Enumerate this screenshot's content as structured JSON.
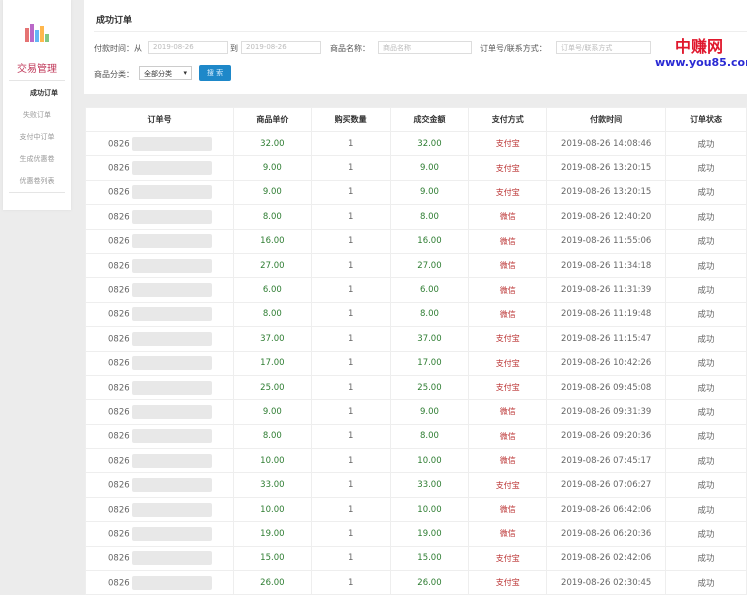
{
  "sidebar": {
    "brand": "交易管理",
    "items": [
      {
        "label": "成功订单",
        "active": true
      },
      {
        "label": "失败订单"
      },
      {
        "label": "支付中订单"
      },
      {
        "label": "生成优惠卷"
      },
      {
        "label": "优惠卷列表"
      }
    ]
  },
  "header": {
    "title": "成功订单"
  },
  "filters": {
    "pay_time_label": "付款时间：从",
    "from_placeholder": "2019-08-26",
    "to_label": "到",
    "to_placeholder": "2019-08-26",
    "product_label": "商品名称：",
    "product_placeholder": "商品名称",
    "order_label": "订单号/联系方式：",
    "order_placeholder": "订单号/联系方式",
    "category_label": "商品分类：",
    "category_value": "全部分类",
    "search_label": "搜 索"
  },
  "table": {
    "headers": [
      "订单号",
      "商品单价",
      "购买数量",
      "成交金额",
      "支付方式",
      "付款时间",
      "订单状态"
    ],
    "rows": [
      [
        "0826",
        "32.00",
        "1",
        "32.00",
        "支付宝",
        "2019-08-26 14:08:46",
        "成功"
      ],
      [
        "0826",
        "9.00",
        "1",
        "9.00",
        "支付宝",
        "2019-08-26 13:20:15",
        "成功"
      ],
      [
        "0826",
        "9.00",
        "1",
        "9.00",
        "支付宝",
        "2019-08-26 13:20:15",
        "成功"
      ],
      [
        "0826",
        "8.00",
        "1",
        "8.00",
        "微信",
        "2019-08-26 12:40:20",
        "成功"
      ],
      [
        "0826",
        "16.00",
        "1",
        "16.00",
        "微信",
        "2019-08-26 11:55:06",
        "成功"
      ],
      [
        "0826",
        "27.00",
        "1",
        "27.00",
        "微信",
        "2019-08-26 11:34:18",
        "成功"
      ],
      [
        "0826",
        "6.00",
        "1",
        "6.00",
        "微信",
        "2019-08-26 11:31:39",
        "成功"
      ],
      [
        "0826",
        "8.00",
        "1",
        "8.00",
        "微信",
        "2019-08-26 11:19:48",
        "成功"
      ],
      [
        "0826",
        "37.00",
        "1",
        "37.00",
        "支付宝",
        "2019-08-26 11:15:47",
        "成功"
      ],
      [
        "0826",
        "17.00",
        "1",
        "17.00",
        "支付宝",
        "2019-08-26 10:42:26",
        "成功"
      ],
      [
        "0826",
        "25.00",
        "1",
        "25.00",
        "支付宝",
        "2019-08-26 09:45:08",
        "成功"
      ],
      [
        "0826",
        "9.00",
        "1",
        "9.00",
        "微信",
        "2019-08-26 09:31:39",
        "成功"
      ],
      [
        "0826",
        "8.00",
        "1",
        "8.00",
        "微信",
        "2019-08-26 09:20:36",
        "成功"
      ],
      [
        "0826",
        "10.00",
        "1",
        "10.00",
        "微信",
        "2019-08-26 07:45:17",
        "成功"
      ],
      [
        "0826",
        "33.00",
        "1",
        "33.00",
        "支付宝",
        "2019-08-26 07:06:27",
        "成功"
      ],
      [
        "0826",
        "10.00",
        "1",
        "10.00",
        "微信",
        "2019-08-26 06:42:06",
        "成功"
      ],
      [
        "0826",
        "19.00",
        "1",
        "19.00",
        "微信",
        "2019-08-26 06:20:36",
        "成功"
      ],
      [
        "0826",
        "15.00",
        "1",
        "15.00",
        "支付宝",
        "2019-08-26 02:42:06",
        "成功"
      ],
      [
        "0826",
        "26.00",
        "1",
        "26.00",
        "支付宝",
        "2019-08-26 02:30:45",
        "成功"
      ]
    ]
  },
  "watermark": {
    "line1": "中赚网",
    "line2": "www.you85.com"
  }
}
